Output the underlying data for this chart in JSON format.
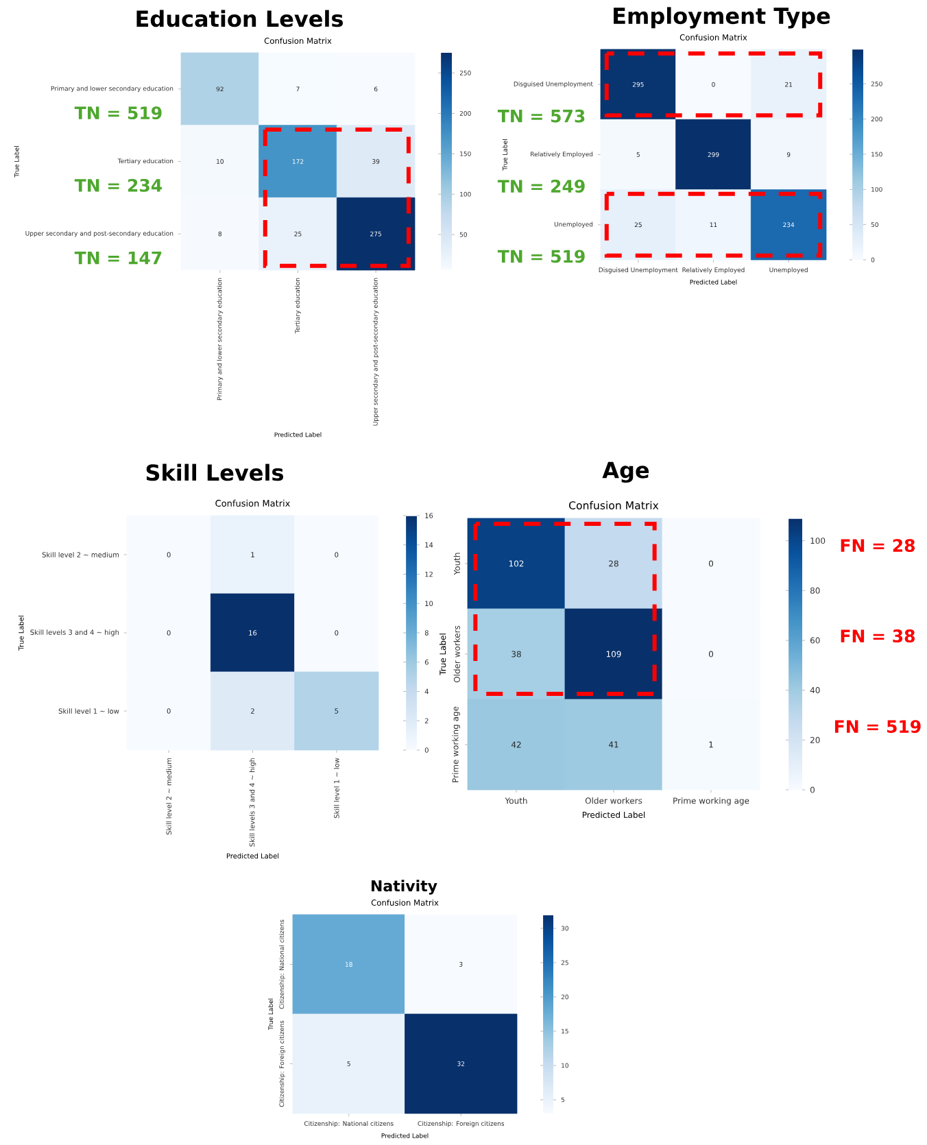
{
  "chart_data": [
    {
      "type": "heatmap",
      "title": "Education Levels",
      "subtitle": "Confusion Matrix",
      "xlabel": "Predicted Label",
      "ylabel": "True Label",
      "categories": [
        "Primary and lower secondary education",
        "Tertiary education",
        "Upper secondary and post-secondary education"
      ],
      "y_categories": [
        "Primary and lower secondary education",
        "Tertiary education",
        "Upper secondary and post-secondary education"
      ],
      "cells": [
        [
          92,
          7,
          6
        ],
        [
          10,
          172,
          39
        ],
        [
          8,
          25,
          275
        ]
      ],
      "clim": [
        6,
        275
      ],
      "cticks": [
        50,
        100,
        150,
        200,
        250
      ],
      "data_labels": true,
      "annotations": [
        "TN = 519",
        "TN = 234",
        "TN = 147"
      ]
    },
    {
      "type": "heatmap",
      "title": "Employment Type",
      "subtitle": "Confusion Matrix",
      "xlabel": "Predicted Label",
      "ylabel": "True Label",
      "categories": [
        "Disguised Unemployment",
        "Relatively Employed",
        "Unemployed"
      ],
      "y_categories": [
        "Disguised Unemployment",
        "Relatively Employed",
        "Unemployed"
      ],
      "cells": [
        [
          295,
          0,
          21
        ],
        [
          5,
          299,
          9
        ],
        [
          25,
          11,
          234
        ]
      ],
      "clim": [
        0,
        299
      ],
      "cticks": [
        0,
        50,
        100,
        150,
        200,
        250
      ],
      "data_labels": true,
      "annotations": [
        "TN = 573",
        "TN = 249",
        "TN = 519"
      ]
    },
    {
      "type": "heatmap",
      "title": "Skill Levels",
      "subtitle": "Confusion Matrix",
      "xlabel": "Predicted Label",
      "ylabel": "True Label",
      "categories": [
        "Skill level 2 ~ medium",
        "Skill levels 3 and 4 ~ high",
        "Skill level 1 ~ low"
      ],
      "y_categories": [
        "Skill level 2 ~ medium",
        "Skill levels 3 and 4 ~ high",
        "Skill level 1 ~ low"
      ],
      "cells": [
        [
          0,
          1,
          0
        ],
        [
          0,
          16,
          0
        ],
        [
          0,
          2,
          5
        ]
      ],
      "clim": [
        0,
        16
      ],
      "cticks": [
        0,
        2,
        4,
        6,
        8,
        10,
        12,
        14,
        16
      ],
      "data_labels": true
    },
    {
      "type": "heatmap",
      "title": "Age",
      "subtitle": "Confusion Matrix",
      "xlabel": "Predicted Label",
      "ylabel": "True Label",
      "categories": [
        "Youth",
        "Older workers",
        "Prime working age"
      ],
      "y_categories": [
        "Youth",
        "Older workers",
        "Prime working age"
      ],
      "cells": [
        [
          102,
          28,
          0
        ],
        [
          38,
          109,
          0
        ],
        [
          42,
          41,
          1
        ]
      ],
      "clim": [
        0,
        109
      ],
      "cticks": [
        0,
        20,
        40,
        60,
        80,
        100
      ],
      "data_labels": true,
      "annotations": [
        "FN = 28",
        "FN = 38",
        "FN = 519"
      ]
    },
    {
      "type": "heatmap",
      "title": "Nativity",
      "subtitle": "Confusion Matrix",
      "xlabel": "Predicted Label",
      "ylabel": "True Label",
      "categories": [
        "Citizenship: National citizens",
        "Citizenship: Foreign citizens"
      ],
      "y_categories": [
        "Citizenship: National citizens",
        "Citizenship: Foreign citizens"
      ],
      "cells": [
        [
          18,
          3
        ],
        [
          5,
          32
        ]
      ],
      "clim": [
        3,
        32
      ],
      "cticks": [
        5,
        10,
        15,
        20,
        25,
        30
      ],
      "data_labels": true
    }
  ]
}
